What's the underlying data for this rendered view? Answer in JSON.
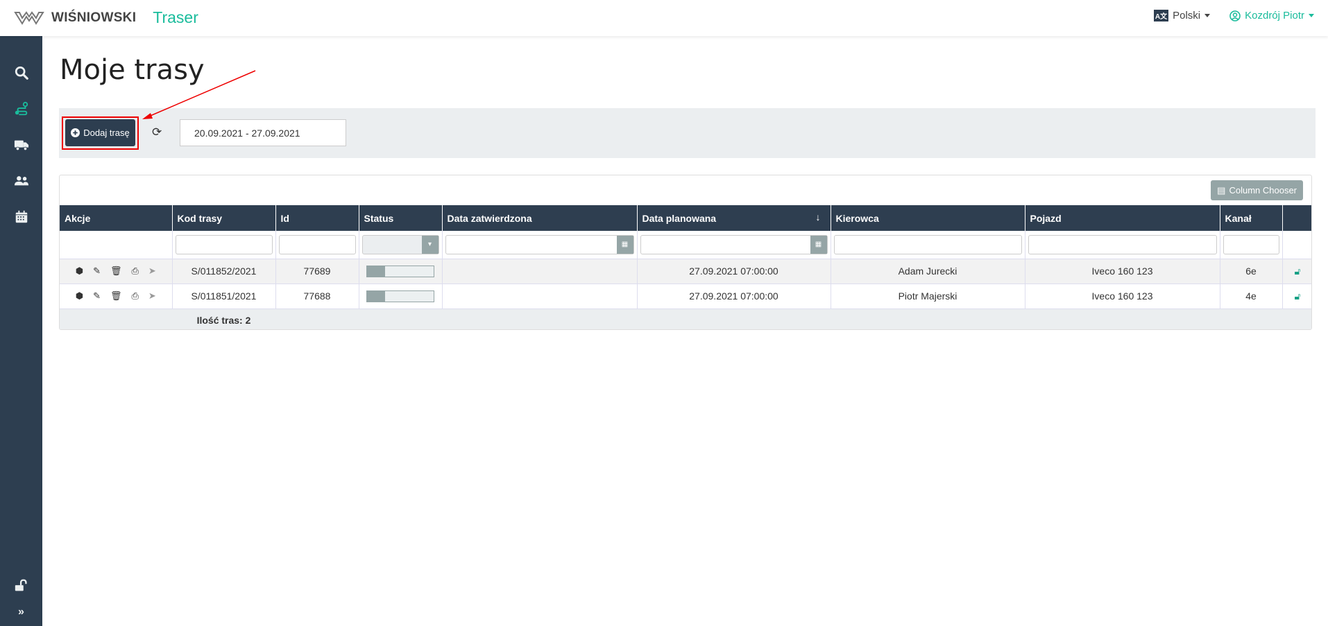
{
  "header": {
    "brand": "WIŚNIOWSKI",
    "app": "Traser",
    "language": "Polski",
    "user": "Kozdrój Piotr"
  },
  "sidebar": {
    "items": [
      "search-icon",
      "route-icon",
      "truck-icon",
      "users-icon",
      "calendar-icon"
    ],
    "bottom": [
      "unlock-icon",
      "expand-icon"
    ],
    "active": "route-icon"
  },
  "page": {
    "title": "Moje trasy"
  },
  "toolbar": {
    "add_label": "Dodaj trasę",
    "date_range": "20.09.2021 - 27.09.2021"
  },
  "grid": {
    "column_chooser": "Column Chooser",
    "columns": [
      "Akcje",
      "Kod trasy",
      "Id",
      "Status",
      "Data zatwierdzona",
      "Data planowana",
      "Kierowca",
      "Pojazd",
      "Kanał",
      ""
    ],
    "sort": {
      "column": "Data planowana",
      "direction": "descending"
    },
    "rows": [
      {
        "kod": "S/011852/2021",
        "id": "77689",
        "status_progress": 0.27,
        "data_zatw": "",
        "data_plan": "27.09.2021 07:00:00",
        "kierowca": "Adam Jurecki",
        "pojazd": "Iveco 160 123",
        "kanal": "6e"
      },
      {
        "kod": "S/011851/2021",
        "id": "77688",
        "status_progress": 0.27,
        "data_zatw": "",
        "data_plan": "27.09.2021 07:00:00",
        "kierowca": "Piotr Majerski",
        "pojazd": "Iveco 160 123",
        "kanal": "4e"
      }
    ],
    "footer": "Ilość tras: 2"
  },
  "colors": {
    "sidebar": "#2d3e50",
    "accent": "#1abc9c",
    "highlight": "#ee0000"
  }
}
